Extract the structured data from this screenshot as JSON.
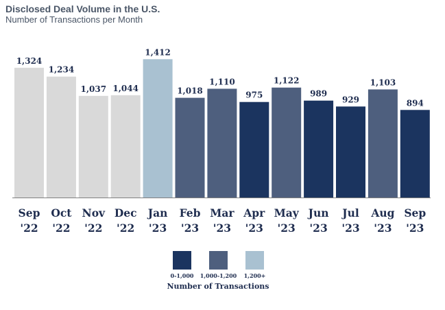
{
  "chart_data": {
    "type": "bar",
    "title": "Disclosed Deal Volume in the U.S.",
    "subtitle": "Number of Transactions per Month",
    "categories": [
      [
        "Sep",
        "'22"
      ],
      [
        "Oct",
        "'22"
      ],
      [
        "Nov",
        "'22"
      ],
      [
        "Dec",
        "'22"
      ],
      [
        "Jan",
        "'23"
      ],
      [
        "Feb",
        "'23"
      ],
      [
        "Mar",
        "'23"
      ],
      [
        "Apr",
        "'23"
      ],
      [
        "May",
        "'23"
      ],
      [
        "Jun",
        "'23"
      ],
      [
        "Jul",
        "'23"
      ],
      [
        "Aug",
        "'23"
      ],
      [
        "Sep",
        "'23"
      ]
    ],
    "values": [
      1324,
      1234,
      1037,
      1044,
      1412,
      1018,
      1110,
      975,
      1122,
      989,
      929,
      1103,
      894
    ],
    "value_labels": [
      "1,324",
      "1,234",
      "1,037",
      "1,044",
      "1,412",
      "1,018",
      "1,110",
      "975",
      "1,122",
      "989",
      "929",
      "1,103",
      "894"
    ],
    "bar_colors": [
      "#d9d9d9",
      "#d9d9d9",
      "#d9d9d9",
      "#d9d9d9",
      "#a9c1d1",
      "#4e5f7e",
      "#4e5f7e",
      "#1b345f",
      "#4e5f7e",
      "#1b345f",
      "#1b345f",
      "#4e5f7e",
      "#1b345f"
    ],
    "ylim": [
      0,
      1500
    ],
    "grid": false,
    "legend": {
      "title": "Number of Transactions",
      "placement": "bottom-center",
      "entries": [
        {
          "label": "0-1,000",
          "color": "#1b345f"
        },
        {
          "label": "1,000-1,200",
          "color": "#4e5f7e"
        },
        {
          "label": "1,200+",
          "color": "#a9c1d1"
        }
      ]
    }
  }
}
